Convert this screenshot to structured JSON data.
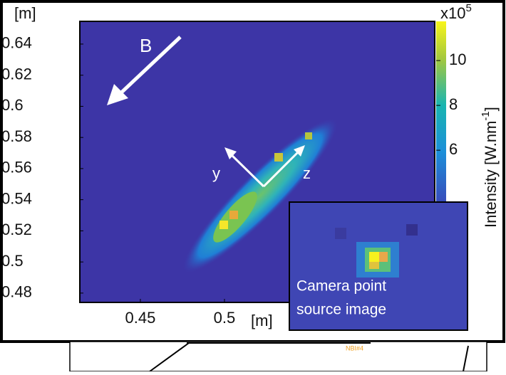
{
  "chart_data": {
    "type": "heatmap",
    "xlabel": "[m]",
    "ylabel": "[m]",
    "xlim": [
      0.414,
      0.625
    ],
    "xticks": [
      0.45,
      0.5
    ],
    "ylim": [
      0.474,
      0.6546
    ],
    "yticks": [
      0.48,
      0.5,
      0.52,
      0.54,
      0.56,
      0.58,
      0.6,
      0.62,
      0.64
    ],
    "colorbar": {
      "label": "Intensity [W.nm",
      "label_exponent": "-1",
      "label_end": "]",
      "multiplier": "x10",
      "multiplier_exponent": "5",
      "lim": [
        4,
        11.75
      ],
      "ticks": [
        6,
        8,
        10
      ]
    },
    "annotations": {
      "field": "B",
      "axis_y": "y",
      "axis_z": "z"
    },
    "inset": {
      "caption_line1": "Camera point",
      "caption_line2": "source image"
    },
    "footer_label": "NBI#4"
  }
}
